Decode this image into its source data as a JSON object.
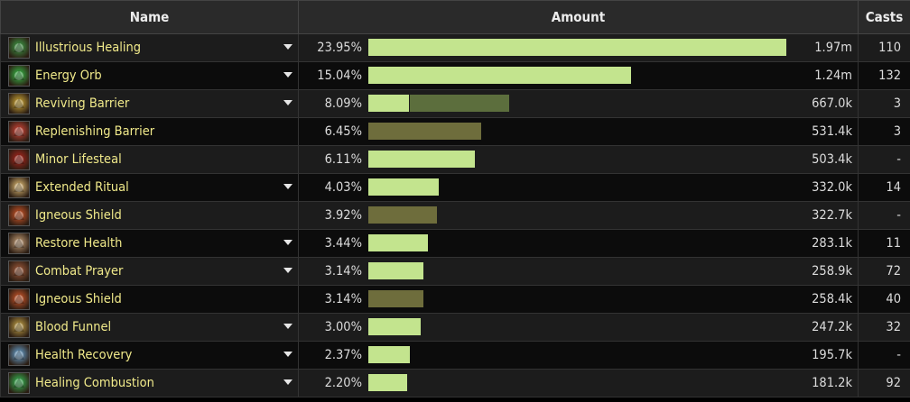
{
  "headers": {
    "name": "Name",
    "amount": "Amount",
    "casts": "Casts"
  },
  "rows": [
    {
      "name": "Illustrious Healing",
      "pct": "23.95%",
      "amount": "1.97m",
      "casts": "110",
      "expandable": true,
      "bar": {
        "fraction": 1.0,
        "style": "light"
      },
      "icon": "healing-hand-icon",
      "icon_color": "#3fa34a"
    },
    {
      "name": "Energy Orb",
      "pct": "15.04%",
      "amount": "1.24m",
      "casts": "132",
      "expandable": true,
      "bar": {
        "fraction": 0.628,
        "style": "light"
      },
      "icon": "energy-orb-icon",
      "icon_color": "#38c24b"
    },
    {
      "name": "Reviving Barrier",
      "pct": "8.09%",
      "amount": "667.0k",
      "casts": "3",
      "expandable": true,
      "bar": {
        "fraction": 0.338,
        "style": "split",
        "split_fraction": 0.1
      },
      "icon": "reviving-barrier-icon",
      "icon_color": "#d7b13a"
    },
    {
      "name": "Replenishing Barrier",
      "pct": "6.45%",
      "amount": "531.4k",
      "casts": "3",
      "expandable": false,
      "bar": {
        "fraction": 0.27,
        "style": "olive"
      },
      "icon": "replenishing-barrier-icon",
      "icon_color": "#d9483a"
    },
    {
      "name": "Minor Lifesteal",
      "pct": "6.11%",
      "amount": "503.4k",
      "casts": "-",
      "expandable": false,
      "bar": {
        "fraction": 0.255,
        "style": "light"
      },
      "icon": "lifesteal-icon",
      "icon_color": "#b2261d"
    },
    {
      "name": "Extended Ritual",
      "pct": "4.03%",
      "amount": "332.0k",
      "casts": "14",
      "expandable": true,
      "bar": {
        "fraction": 0.168,
        "style": "light"
      },
      "icon": "ritual-icon",
      "icon_color": "#e8c47a"
    },
    {
      "name": "Igneous Shield",
      "pct": "3.92%",
      "amount": "322.7k",
      "casts": "-",
      "expandable": false,
      "bar": {
        "fraction": 0.164,
        "style": "olive"
      },
      "icon": "igneous-shield-icon",
      "icon_color": "#d6592a"
    },
    {
      "name": "Restore Health",
      "pct": "3.44%",
      "amount": "283.1k",
      "casts": "11",
      "expandable": true,
      "bar": {
        "fraction": 0.143,
        "style": "light"
      },
      "icon": "potion-bottle-icon",
      "icon_color": "#c9a27a"
    },
    {
      "name": "Combat Prayer",
      "pct": "3.14%",
      "amount": "258.9k",
      "casts": "72",
      "expandable": true,
      "bar": {
        "fraction": 0.131,
        "style": "light"
      },
      "icon": "combat-prayer-icon",
      "icon_color": "#a35c3c"
    },
    {
      "name": "Igneous Shield",
      "pct": "3.14%",
      "amount": "258.4k",
      "casts": "40",
      "expandable": false,
      "bar": {
        "fraction": 0.131,
        "style": "olive"
      },
      "icon": "igneous-shield-icon",
      "icon_color": "#d6592a"
    },
    {
      "name": "Blood Funnel",
      "pct": "3.00%",
      "amount": "247.2k",
      "casts": "32",
      "expandable": true,
      "bar": {
        "fraction": 0.125,
        "style": "light"
      },
      "icon": "blood-funnel-icon",
      "icon_color": "#c9a84a"
    },
    {
      "name": "Health Recovery",
      "pct": "2.37%",
      "amount": "195.7k",
      "casts": "-",
      "expandable": true,
      "bar": {
        "fraction": 0.099,
        "style": "light"
      },
      "icon": "health-flask-icon",
      "icon_color": "#6aa8d8"
    },
    {
      "name": "Healing Combustion",
      "pct": "2.20%",
      "amount": "181.2k",
      "casts": "92",
      "expandable": true,
      "bar": {
        "fraction": 0.092,
        "style": "light"
      },
      "icon": "healing-combustion-icon",
      "icon_color": "#37c25a"
    }
  ]
}
